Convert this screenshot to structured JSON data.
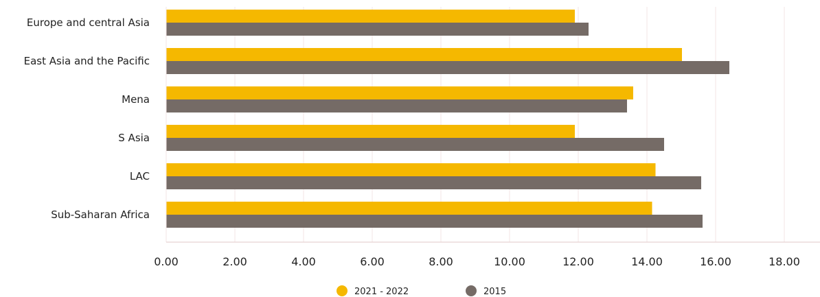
{
  "chart_data": {
    "type": "bar",
    "orientation": "horizontal",
    "categories": [
      "Europe and central Asia",
      "East Asia and the Pacific",
      "Mena",
      "S Asia",
      "LAC",
      "Sub-Saharan Africa"
    ],
    "series": [
      {
        "name": "2021 - 2022",
        "color": "#f5b800",
        "values": [
          11.9,
          15.02,
          13.6,
          11.9,
          14.25,
          14.15
        ]
      },
      {
        "name": "2015",
        "color": "#756b66",
        "values": [
          12.3,
          16.4,
          13.42,
          14.5,
          15.58,
          15.62
        ]
      }
    ],
    "xlim": [
      0,
      19
    ],
    "x_ticks": [
      "0.00",
      "2.00",
      "4.00",
      "6.00",
      "8.00",
      "10.00",
      "12.00",
      "14.00",
      "16.00",
      "18.00"
    ],
    "x_tick_values": [
      0,
      2,
      4,
      6,
      8,
      10,
      12,
      14,
      16,
      18
    ],
    "grid": "vertical",
    "grid_color": "#f3e4e4",
    "legend_position": "bottom-center"
  }
}
